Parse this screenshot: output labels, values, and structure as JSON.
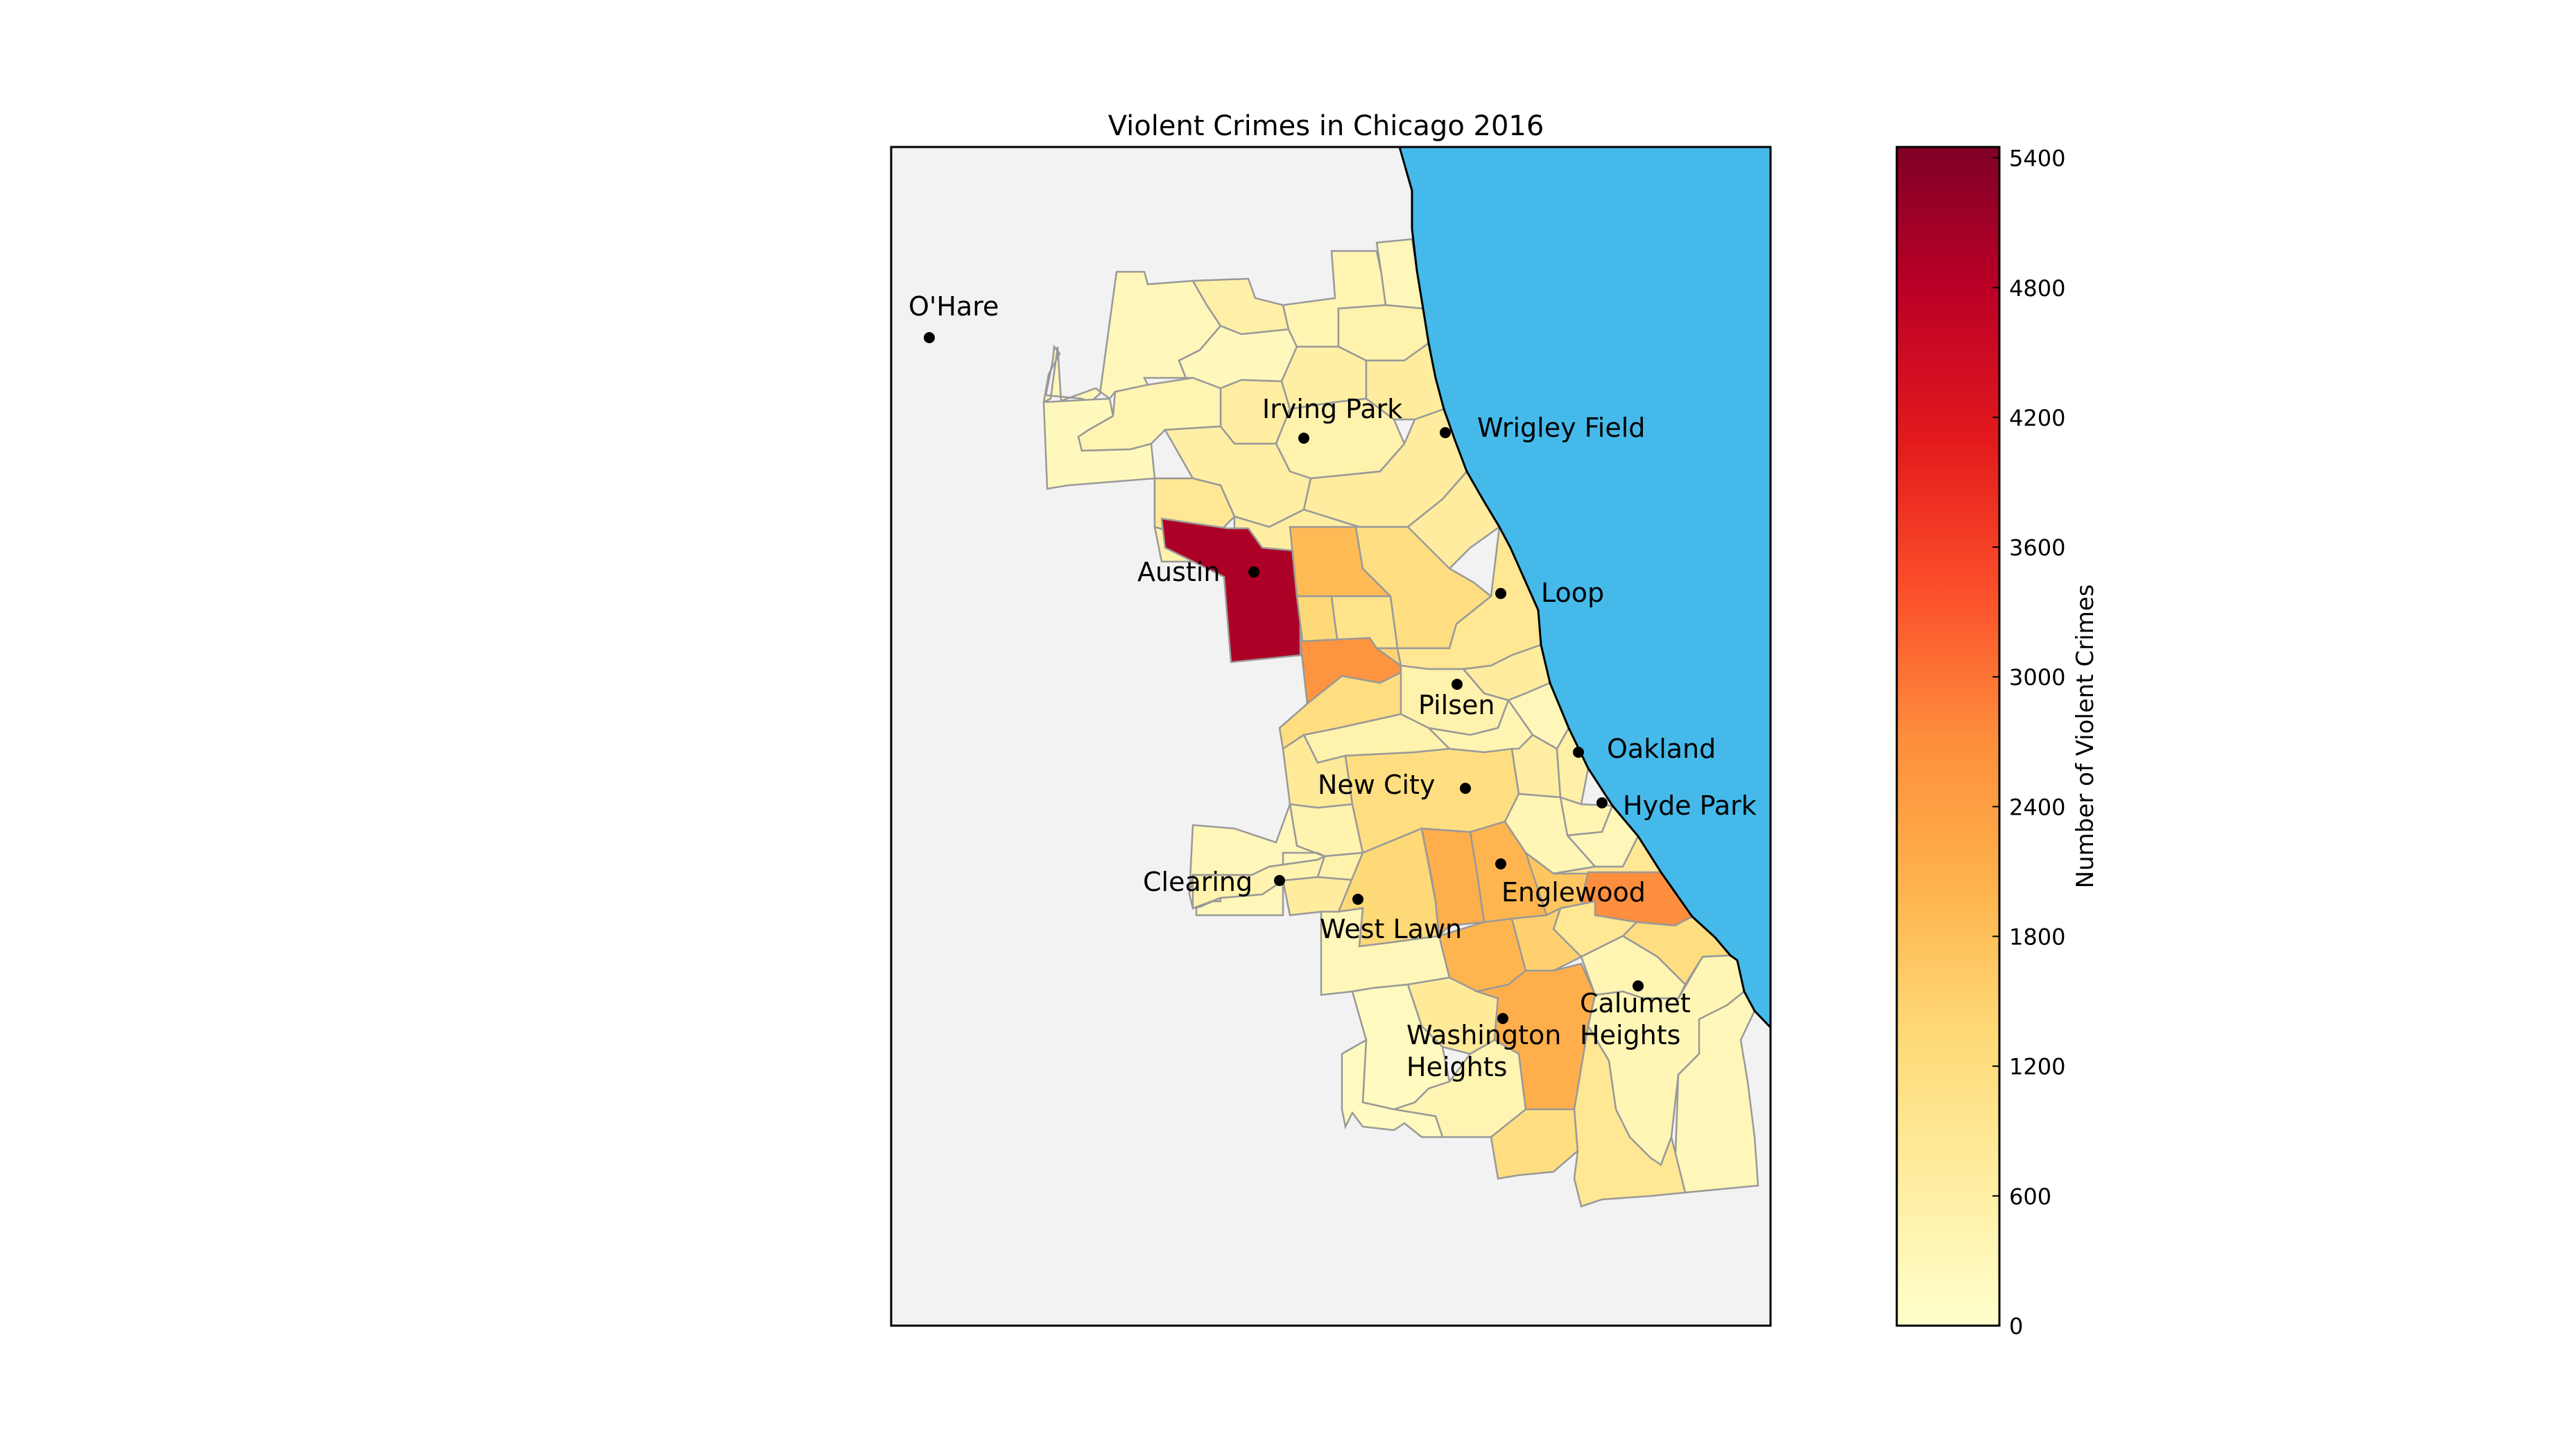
{
  "title": "Violent Crimes in Chicago 2016",
  "colors": {
    "water": "#45baea",
    "land_background": "#f2f2f2",
    "district_border": "#999999",
    "shoreline": "#000000",
    "marker": "#000000"
  },
  "colorbar": {
    "label": "Number of Violent Crimes",
    "ticks": [
      "0",
      "600",
      "1200",
      "1800",
      "2400",
      "3000",
      "3600",
      "4200",
      "4800",
      "5400"
    ],
    "tick_values": [
      0,
      600,
      1200,
      1800,
      2400,
      3000,
      3600,
      4200,
      4800,
      5400
    ],
    "max": 5450,
    "colormap": "YlOrRd",
    "stops": [
      "#ffffcc",
      "#ffeda0",
      "#fed976",
      "#feb24c",
      "#fd8d3c",
      "#fc4e2a",
      "#e31a1c",
      "#bd0026",
      "#800026"
    ]
  },
  "places": [
    {
      "name": "O'Hare"
    },
    {
      "name": "Irving Park"
    },
    {
      "name": "Wrigley Field"
    },
    {
      "name": "Austin"
    },
    {
      "name": "Loop"
    },
    {
      "name": "Pilsen"
    },
    {
      "name": "Oakland"
    },
    {
      "name": "New City"
    },
    {
      "name": "Hyde Park"
    },
    {
      "name": "Clearing"
    },
    {
      "name": "Englewood"
    },
    {
      "name": "West Lawn"
    },
    {
      "name": "Calumet",
      "name2": "Heights"
    },
    {
      "name": "Washington",
      "name2": "Heights"
    }
  ],
  "district_values": {
    "far-north-1": 300,
    "far-north-2": 550,
    "far-north-3": 250,
    "far-north-4": 400,
    "north-1": 300,
    "north-2": 500,
    "north-3": 600,
    "north-4": 700,
    "north-5": 650,
    "north-6": 500,
    "nw-1": 250,
    "nw-2": 400,
    "nw-3": 600,
    "nw-4": 700,
    "nw-5": 550,
    "nw-6": 650,
    "west-1": 500,
    "west-2": 900,
    "west-3": 700,
    "west-4": 500,
    "austin": 4950,
    "humboldt": 1900,
    "near-west-1": 1200,
    "near-west-2": 1000,
    "garfield": 1350,
    "wgp": 1450,
    "n-lawndale": 2600,
    "loop": 900,
    "near-south": 700,
    "lawndale-s": 1200,
    "pilsen": 500,
    "bridgeport": 400,
    "armour": 300,
    "brighton": 500,
    "mckinley": 800,
    "archer": 450,
    "new-city": 1200,
    "fuller": 650,
    "douglas": 550,
    "oakland": 400,
    "hyde-park": 300,
    "kenwood": 350,
    "clearing": 300,
    "garfield-ridge": 450,
    "west-elsdon": 500,
    "west-lawn": 700,
    "chicago-lawn": 1350,
    "w-englewood": 2100,
    "englewood": 2000,
    "greater-gc": 1700,
    "woodlawn": 900,
    "s-shore": 2700,
    "s-chicago": 1200,
    "avalon": 900,
    "auburn": 2000,
    "chatham": 1500,
    "ashburn": 300,
    "wash-heights": 800,
    "roseland": 2100,
    "beverly": 200,
    "morgan-park": 400,
    "pullman": 1200,
    "calumet-heights": 400,
    "se-side": 350,
    "hegewisch": 300,
    "riverdale": 900,
    "mt-greenwood": 200
  }
}
